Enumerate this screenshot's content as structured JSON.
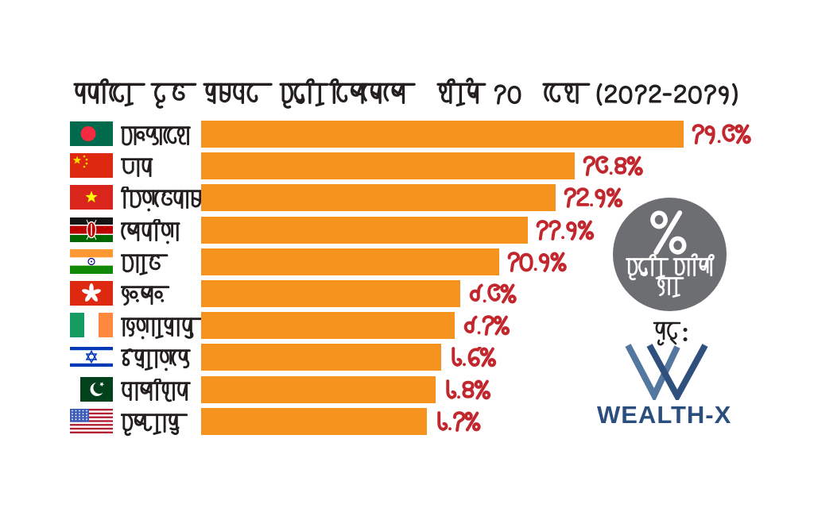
{
  "title": "ধনীদের দ্রুত সম্পদ বৃদ্ধির দিক থেকে শীর্ষ ১০ দেশ (২০১২-২০১৭)",
  "chart_data": {
    "type": "bar",
    "orientation": "horizontal",
    "title": "ধনীদের দ্রুত সম্পদ বৃদ্ধির দিক থেকে শীর্ষ ১০ দেশ (২০১২-২০১৭)",
    "categories": [
      "বাংলাদেশ",
      "চীন",
      "ভিয়েতনাম",
      "কেনিয়া",
      "ভারত",
      "হংকং",
      "আয়ারল্যান্ড",
      "ইসরায়েল",
      "পাকিস্তান",
      "যুক্তরাষ্ট্র"
    ],
    "categories_en": [
      "Bangladesh",
      "China",
      "Vietnam",
      "Kenya",
      "India",
      "Hong Kong",
      "Ireland",
      "Israel",
      "Pakistan",
      "United States"
    ],
    "values": [
      17.3,
      13.4,
      12.7,
      11.7,
      10.7,
      9.3,
      9.1,
      8.6,
      8.4,
      8.1
    ],
    "value_labels": [
      "১৭.৩%",
      "১৩.৪%",
      "১২.৭%",
      "১১.৭%",
      "১০.৭%",
      "৯.৩%",
      "৯.১%",
      "৮.৬%",
      "৮.৪%",
      "৮.১%"
    ],
    "xlim": [
      0,
      17.3
    ],
    "grid": false,
    "legend_position": "right",
    "bar_color": "#f6921e",
    "value_label_color": "#c1272d"
  },
  "legend_circle": {
    "symbol": "%",
    "line1": "বৃদ্ধির বার্ষিক",
    "line2": "হার",
    "bg_color": "#6d6e71",
    "text_color": "#ffffff"
  },
  "source": {
    "label": "সূত্র :",
    "brand": "WEALTH-X",
    "brand_color": "#2c4e7e"
  }
}
